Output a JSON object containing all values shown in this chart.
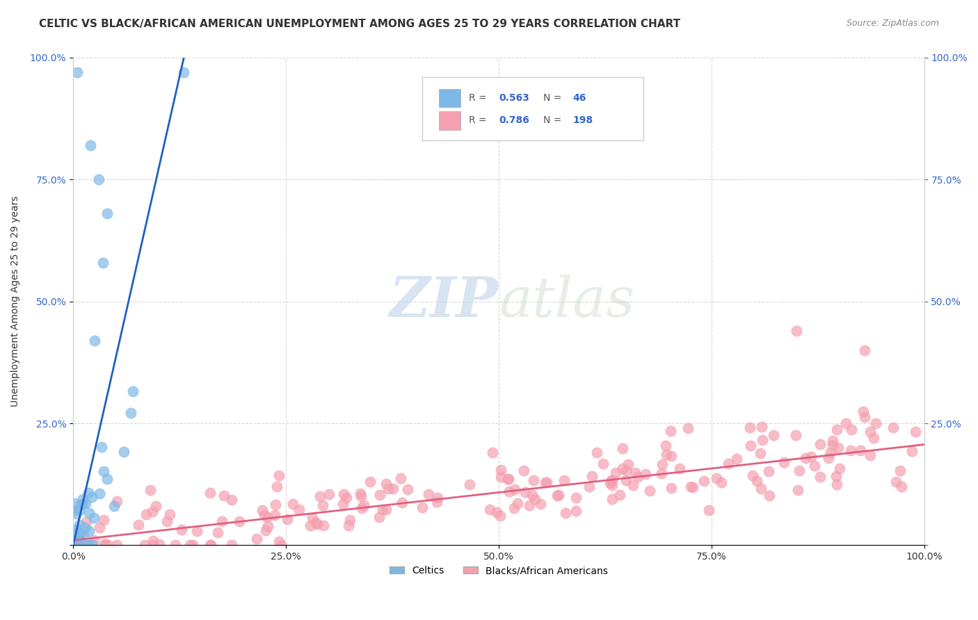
{
  "title": "CELTIC VS BLACK/AFRICAN AMERICAN UNEMPLOYMENT AMONG AGES 25 TO 29 YEARS CORRELATION CHART",
  "source": "Source: ZipAtlas.com",
  "ylabel": "Unemployment Among Ages 25 to 29 years",
  "celtics_R": 0.563,
  "celtics_N": 46,
  "blacks_R": 0.786,
  "blacks_N": 198,
  "celtics_color": "#7eb8e8",
  "blacks_color": "#f4a0b0",
  "celtics_line_color": "#2060c0",
  "blacks_line_color": "#e06080",
  "legend_label1": "Celtics",
  "legend_label2": "Blacks/African Americans",
  "xlim": [
    0,
    1.0
  ],
  "ylim": [
    0,
    1.0
  ],
  "xticks": [
    0.0,
    0.25,
    0.5,
    0.75,
    1.0
  ],
  "xticklabels": [
    "0.0%",
    "25.0%",
    "50.0%",
    "75.0%",
    "100.0%"
  ],
  "yticks": [
    0.0,
    0.25,
    0.5,
    0.75,
    1.0
  ],
  "yticklabels": [
    "",
    "25.0%",
    "50.0%",
    "75.0%",
    "100.0%"
  ],
  "watermark_zip": "ZIP",
  "watermark_atlas": "atlas",
  "background_color": "#ffffff",
  "title_fontsize": 11,
  "axis_fontsize": 10,
  "tick_fontsize": 10,
  "legend_text_color": "#3366cc",
  "tick_color_right": "#3366cc"
}
